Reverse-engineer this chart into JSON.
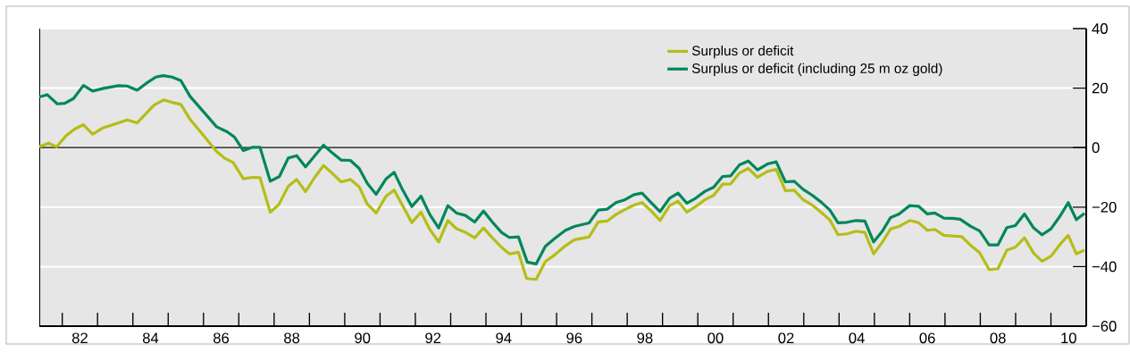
{
  "chart_data": {
    "type": "line",
    "series": [
      {
        "name": "Surplus or deficit",
        "color": "#b5bd17",
        "x": [
          1980.85,
          1981.11,
          1981.34,
          1981.61,
          1981.85,
          1982.1,
          1982.36,
          1982.63,
          1983.34,
          1983.62,
          1984.1,
          1984.37,
          1984.61,
          1984.86,
          1985.12,
          1985.54,
          1985.87,
          1986.09,
          1986.34,
          1986.63,
          1986.89,
          1987.1,
          1987.39,
          1987.63,
          1987.9,
          1988.14,
          1988.39,
          1988.65,
          1988.9,
          1989.15,
          1989.4,
          1989.66,
          1989.91,
          1990.14,
          1990.39,
          1990.67,
          1990.9,
          1991.4,
          1991.66,
          1991.91,
          1992.16,
          1992.42,
          1992.67,
          1992.92,
          1993.18,
          1993.43,
          1993.68,
          1993.94,
          1994.16,
          1994.42,
          1994.65,
          1994.92,
          1995.18,
          1995.45,
          1995.75,
          1996.0,
          1996.42,
          1996.68,
          1996.93,
          1997.18,
          1997.44,
          1997.69,
          1997.92,
          1998.18,
          1998.43,
          1998.7,
          1998.94,
          1999.19,
          1999.44,
          1999.7,
          1999.95,
          2000.2,
          2000.43,
          2000.68,
          2000.93,
          2001.19,
          2001.47,
          2001.72,
          2001.98,
          2002.23,
          2002.48,
          2002.74,
          2002.99,
          2003.24,
          2003.47,
          2003.72,
          2003.98,
          2004.23,
          2004.48,
          2004.73,
          2004.96,
          2005.2,
          2005.5,
          2005.75,
          2006.0,
          2006.21,
          2006.47,
          2006.72,
          2006.97,
          2007.24,
          2007.48,
          2007.75,
          2008.0,
          2008.25,
          2008.49,
          2008.75,
          2009.01,
          2009.25,
          2009.5,
          2009.76,
          2009.99,
          2010.22,
          2010.45
        ],
        "values": [
          0.3,
          1.5,
          0.3,
          4.0,
          6.2,
          7.7,
          4.5,
          6.5,
          9.3,
          8.3,
          14.3,
          16.0,
          15.2,
          14.5,
          9.5,
          3.5,
          -1.3,
          -3.5,
          -5.0,
          -10.5,
          -10.0,
          -10.1,
          -21.7,
          -19.2,
          -13.0,
          -10.7,
          -14.8,
          -10.0,
          -6.0,
          -8.7,
          -11.5,
          -10.7,
          -13.2,
          -19.0,
          -22.0,
          -16.3,
          -14.3,
          -25.2,
          -21.7,
          -27.5,
          -31.7,
          -24.5,
          -27.3,
          -28.5,
          -30.3,
          -27.0,
          -30.3,
          -33.5,
          -35.7,
          -35.2,
          -44.0,
          -44.3,
          -38.3,
          -36.0,
          -33.0,
          -31.0,
          -30.0,
          -25.0,
          -24.7,
          -22.5,
          -20.8,
          -19.3,
          -18.5,
          -21.3,
          -24.5,
          -19.5,
          -18.0,
          -21.7,
          -19.8,
          -17.5,
          -16.0,
          -12.3,
          -12.2,
          -8.5,
          -7.0,
          -10.0,
          -8.0,
          -7.3,
          -14.5,
          -14.3,
          -17.5,
          -19.3,
          -21.7,
          -24.3,
          -29.3,
          -29.0,
          -28.1,
          -28.5,
          -35.7,
          -31.7,
          -27.3,
          -26.5,
          -24.5,
          -25.2,
          -27.8,
          -27.5,
          -29.5,
          -29.7,
          -29.9,
          -33.0,
          -35.3,
          -41.0,
          -40.7,
          -34.5,
          -33.5,
          -30.3,
          -35.5,
          -38.2,
          -36.5,
          -32.5,
          -29.5,
          -35.7,
          -34.5
        ]
      },
      {
        "name": "Surplus or deficit (including 25 m oz gold)",
        "color": "#00875a",
        "x": [
          1980.85,
          1981.07,
          1981.36,
          1981.57,
          1981.82,
          1982.1,
          1982.36,
          1982.7,
          1983.09,
          1983.34,
          1983.62,
          1983.89,
          1984.15,
          1984.36,
          1984.61,
          1984.86,
          1985.12,
          1985.54,
          1985.87,
          1986.17,
          1986.38,
          1986.63,
          1986.89,
          1987.1,
          1987.39,
          1987.65,
          1987.9,
          1988.14,
          1988.39,
          1988.9,
          1989.17,
          1989.4,
          1989.66,
          1989.91,
          1990.14,
          1990.39,
          1990.67,
          1990.9,
          1991.11,
          1991.4,
          1991.66,
          1991.91,
          1992.16,
          1992.42,
          1992.67,
          1992.92,
          1993.18,
          1993.43,
          1993.68,
          1993.94,
          1994.16,
          1994.42,
          1994.67,
          1994.92,
          1995.18,
          1995.45,
          1995.75,
          1996.0,
          1996.42,
          1996.68,
          1996.93,
          1997.18,
          1997.44,
          1997.69,
          1997.92,
          1998.18,
          1998.43,
          1998.7,
          1998.94,
          1999.19,
          1999.44,
          1999.7,
          1999.95,
          2000.2,
          2000.43,
          2000.68,
          2000.93,
          2001.19,
          2001.47,
          2001.72,
          2001.98,
          2002.23,
          2002.48,
          2002.74,
          2002.99,
          2003.24,
          2003.47,
          2003.72,
          2003.98,
          2004.23,
          2004.48,
          2004.73,
          2004.96,
          2005.2,
          2005.5,
          2005.75,
          2006.0,
          2006.21,
          2006.47,
          2006.72,
          2006.93,
          2007.23,
          2007.48,
          2007.75,
          2008.0,
          2008.25,
          2008.49,
          2008.75,
          2009.01,
          2009.25,
          2009.5,
          2009.76,
          2009.99,
          2010.22,
          2010.45
        ],
        "values": [
          17.0,
          17.8,
          14.7,
          14.9,
          16.5,
          20.9,
          19.0,
          20.0,
          20.8,
          20.7,
          19.3,
          21.7,
          23.7,
          24.2,
          23.7,
          22.5,
          17.2,
          11.5,
          7.0,
          5.3,
          3.5,
          -1.0,
          0.1,
          0.1,
          -11.3,
          -9.7,
          -3.5,
          -2.7,
          -6.5,
          0.8,
          -2.0,
          -4.2,
          -4.3,
          -7.0,
          -12.0,
          -15.7,
          -10.5,
          -8.3,
          -13.5,
          -19.8,
          -16.3,
          -22.5,
          -27.0,
          -19.5,
          -22.0,
          -22.8,
          -25.0,
          -21.3,
          -25.0,
          -28.5,
          -30.2,
          -30.0,
          -38.5,
          -39.1,
          -33.2,
          -30.5,
          -27.8,
          -26.5,
          -25.3,
          -21.0,
          -20.7,
          -18.5,
          -17.5,
          -15.8,
          -15.3,
          -18.5,
          -21.5,
          -17.0,
          -15.3,
          -18.7,
          -17.0,
          -14.7,
          -13.3,
          -9.7,
          -9.5,
          -5.8,
          -4.5,
          -7.5,
          -5.5,
          -4.8,
          -11.5,
          -11.3,
          -14.0,
          -16.0,
          -18.3,
          -21.0,
          -25.3,
          -25.1,
          -24.5,
          -24.7,
          -31.7,
          -28.0,
          -23.5,
          -22.3,
          -19.5,
          -19.7,
          -22.3,
          -22.0,
          -23.7,
          -23.8,
          -24.1,
          -26.5,
          -28.0,
          -32.7,
          -32.7,
          -26.9,
          -26.2,
          -22.3,
          -27.0,
          -29.3,
          -27.3,
          -23.0,
          -18.5,
          -24.2,
          -22.1
        ]
      }
    ],
    "xlim": [
      1980.85,
      2010.5
    ],
    "xticks": [
      {
        "value": 1981.5,
        "label": null
      },
      {
        "value": 1982,
        "label": "82"
      },
      {
        "value": 1982.5,
        "label": null
      },
      {
        "value": 1983.5,
        "label": null
      },
      {
        "value": 1984,
        "label": "84"
      },
      {
        "value": 1984.5,
        "label": null
      },
      {
        "value": 1985.5,
        "label": null
      },
      {
        "value": 1986,
        "label": "86"
      },
      {
        "value": 1986.5,
        "label": null
      },
      {
        "value": 1987.5,
        "label": null
      },
      {
        "value": 1988,
        "label": "88"
      },
      {
        "value": 1988.5,
        "label": null
      },
      {
        "value": 1989.5,
        "label": null
      },
      {
        "value": 1990,
        "label": "90"
      },
      {
        "value": 1990.5,
        "label": null
      },
      {
        "value": 1991.5,
        "label": null
      },
      {
        "value": 1992,
        "label": "92"
      },
      {
        "value": 1992.5,
        "label": null
      },
      {
        "value": 1993.5,
        "label": null
      },
      {
        "value": 1994,
        "label": "94"
      },
      {
        "value": 1994.5,
        "label": null
      },
      {
        "value": 1995.5,
        "label": null
      },
      {
        "value": 1996,
        "label": "96"
      },
      {
        "value": 1996.5,
        "label": null
      },
      {
        "value": 1997.5,
        "label": null
      },
      {
        "value": 1998,
        "label": "98"
      },
      {
        "value": 1998.5,
        "label": null
      },
      {
        "value": 1999.5,
        "label": null
      },
      {
        "value": 2000,
        "label": "00"
      },
      {
        "value": 2000.5,
        "label": null
      },
      {
        "value": 2001.5,
        "label": null
      },
      {
        "value": 2002,
        "label": "02"
      },
      {
        "value": 2002.5,
        "label": null
      },
      {
        "value": 2003.5,
        "label": null
      },
      {
        "value": 2004,
        "label": "04"
      },
      {
        "value": 2004.5,
        "label": null
      },
      {
        "value": 2005.5,
        "label": null
      },
      {
        "value": 2006,
        "label": "06"
      },
      {
        "value": 2006.5,
        "label": null
      },
      {
        "value": 2007.5,
        "label": null
      },
      {
        "value": 2008,
        "label": "08"
      },
      {
        "value": 2008.5,
        "label": null
      },
      {
        "value": 2009.5,
        "label": null
      },
      {
        "value": 2010,
        "label": "10"
      }
    ],
    "ylim": [
      -60,
      40
    ],
    "yticks": [
      {
        "value": -60,
        "label": "−60"
      },
      {
        "value": -40,
        "label": "−40"
      },
      {
        "value": -20,
        "label": "−20"
      },
      0,
      20,
      40
    ],
    "ref_lines": [
      {
        "axis": "y",
        "value": 0,
        "color": "#000000"
      }
    ],
    "grid": "y",
    "legend": "top right",
    "line_style": "solid",
    "marker": "none"
  }
}
